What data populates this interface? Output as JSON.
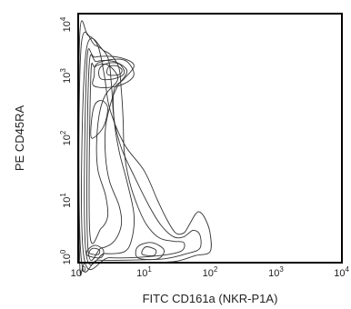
{
  "chart_data": {
    "type": "contour",
    "xlabel": "FITC CD161a (NKR-P1A)",
    "ylabel": "PE CD45RA",
    "xscale": "log",
    "yscale": "log",
    "xlim": [
      1,
      10000
    ],
    "ylim": [
      1,
      10000
    ],
    "x_ticks": [
      {
        "base": "10",
        "exp": "0",
        "value": 1
      },
      {
        "base": "10",
        "exp": "1",
        "value": 10
      },
      {
        "base": "10",
        "exp": "2",
        "value": 100
      },
      {
        "base": "10",
        "exp": "3",
        "value": 1000
      },
      {
        "base": "10",
        "exp": "4",
        "value": 10000
      }
    ],
    "y_ticks": [
      {
        "base": "10",
        "exp": "0",
        "value": 1
      },
      {
        "base": "10",
        "exp": "1",
        "value": 10
      },
      {
        "base": "10",
        "exp": "2",
        "value": 100
      },
      {
        "base": "10",
        "exp": "3",
        "value": 1000
      },
      {
        "base": "10",
        "exp": "4",
        "value": 10000
      }
    ],
    "grid": false,
    "populations": [
      {
        "x_center": 3.5,
        "y_center": 1300
      },
      {
        "x_center": 1.5,
        "y_center": 1.5
      },
      {
        "x_center": 12,
        "y_center": 1.5
      }
    ],
    "contours": [
      [
        [
          1.05,
          1.2
        ],
        [
          1.3,
          1.0
        ],
        [
          3,
          1.0
        ],
        [
          10,
          1.0
        ],
        [
          30,
          1.05
        ],
        [
          60,
          1.3
        ],
        [
          100,
          1.5
        ],
        [
          100,
          3
        ],
        [
          85,
          5
        ],
        [
          70,
          6.5
        ],
        [
          60,
          6
        ],
        [
          48,
          4
        ],
        [
          40,
          3
        ],
        [
          30,
          3
        ],
        [
          22,
          5
        ],
        [
          16,
          10
        ],
        [
          10,
          30
        ],
        [
          5,
          80
        ],
        [
          3,
          300
        ],
        [
          2.5,
          1000
        ],
        [
          2.0,
          3000
        ],
        [
          1.4,
          4500
        ],
        [
          1.05,
          4000
        ]
      ],
      [
        [
          1.1,
          1.3
        ],
        [
          2,
          1.1
        ],
        [
          6,
          1.1
        ],
        [
          20,
          1.15
        ],
        [
          45,
          1.4
        ],
        [
          70,
          1.7
        ],
        [
          70,
          2.8
        ],
        [
          55,
          3.3
        ],
        [
          40,
          2.6
        ],
        [
          28,
          2.6
        ],
        [
          18,
          4
        ],
        [
          12,
          8
        ],
        [
          7,
          25
        ],
        [
          4.5,
          70
        ],
        [
          3.5,
          200
        ],
        [
          3.2,
          700
        ],
        [
          2.8,
          2000
        ],
        [
          1.8,
          3100
        ],
        [
          1.1,
          2700
        ]
      ],
      [
        [
          1.2,
          1.4
        ],
        [
          3,
          1.2
        ],
        [
          12,
          1.25
        ],
        [
          35,
          1.5
        ],
        [
          40,
          2.1
        ],
        [
          28,
          2.2
        ],
        [
          17,
          2.5
        ],
        [
          11,
          4
        ],
        [
          8,
          8
        ],
        [
          6,
          20
        ],
        [
          5,
          60
        ],
        [
          4.8,
          200
        ],
        [
          4.5,
          600
        ],
        [
          4,
          1500
        ],
        [
          2.5,
          2500
        ],
        [
          1.3,
          2200
        ]
      ],
      [
        [
          1.3,
          1.6
        ],
        [
          2.5,
          1.4
        ],
        [
          5,
          1.5
        ],
        [
          6.5,
          2.4
        ],
        [
          7,
          6
        ],
        [
          5.5,
          20
        ],
        [
          4.2,
          60
        ],
        [
          3.5,
          200
        ],
        [
          3.5,
          600
        ],
        [
          5,
          900
        ],
        [
          7,
          1500
        ],
        [
          4,
          2000
        ],
        [
          1.8,
          2000
        ],
        [
          1.35,
          1500
        ]
      ],
      [
        [
          1.4,
          1.8
        ],
        [
          2.2,
          1.7
        ],
        [
          3.5,
          2.2
        ],
        [
          4.5,
          4
        ],
        [
          4.2,
          8
        ],
        [
          3,
          20
        ],
        [
          2.6,
          50
        ],
        [
          2.6,
          150
        ],
        [
          3.2,
          400
        ],
        [
          4,
          700
        ],
        [
          5.5,
          1200
        ],
        [
          3.5,
          1700
        ],
        [
          1.9,
          1700
        ],
        [
          1.45,
          1200
        ]
      ],
      [
        [
          1.5,
          3
        ],
        [
          2.2,
          3.5
        ],
        [
          2.8,
          5.5
        ],
        [
          2.6,
          12
        ],
        [
          2,
          30
        ],
        [
          1.9,
          80
        ],
        [
          2.1,
          250
        ],
        [
          2.6,
          500
        ],
        [
          4,
          900
        ],
        [
          2.8,
          1500
        ],
        [
          1.8,
          1400
        ],
        [
          1.55,
          900
        ]
      ],
      [
        [
          1.6,
          100
        ],
        [
          2.4,
          150
        ],
        [
          2.8,
          300
        ],
        [
          2.3,
          400
        ],
        [
          1.8,
          350
        ],
        [
          1.6,
          200
        ]
      ],
      [
        [
          1.7,
          700
        ],
        [
          2.8,
          650
        ],
        [
          5,
          750
        ],
        [
          7,
          1050
        ],
        [
          5.5,
          1700
        ],
        [
          3.5,
          1850
        ],
        [
          1.9,
          1550
        ],
        [
          1.75,
          1000
        ]
      ],
      [
        [
          2.2,
          900
        ],
        [
          3.5,
          900
        ],
        [
          5,
          1100
        ],
        [
          4.2,
          1550
        ],
        [
          2.8,
          1600
        ],
        [
          2.1,
          1300
        ]
      ],
      [
        [
          2.8,
          1050
        ],
        [
          4.2,
          1050
        ],
        [
          4.6,
          1250
        ],
        [
          3.8,
          1450
        ],
        [
          2.9,
          1400
        ]
      ],
      [
        [
          1.4,
          1.3
        ],
        [
          2.2,
          1.2
        ],
        [
          2.4,
          1.6
        ],
        [
          1.8,
          1.9
        ],
        [
          1.4,
          1.6
        ]
      ],
      [
        [
          1.5,
          1.4
        ],
        [
          2.0,
          1.35
        ],
        [
          2.1,
          1.6
        ],
        [
          1.7,
          1.7
        ],
        [
          1.5,
          1.55
        ]
      ],
      [
        [
          8,
          1.2
        ],
        [
          16,
          1.15
        ],
        [
          20,
          1.6
        ],
        [
          13,
          2.1
        ],
        [
          8,
          1.8
        ]
      ],
      [
        [
          9.5,
          1.35
        ],
        [
          14,
          1.3
        ],
        [
          15,
          1.6
        ],
        [
          11,
          1.8
        ],
        [
          9.5,
          1.6
        ]
      ]
    ]
  }
}
